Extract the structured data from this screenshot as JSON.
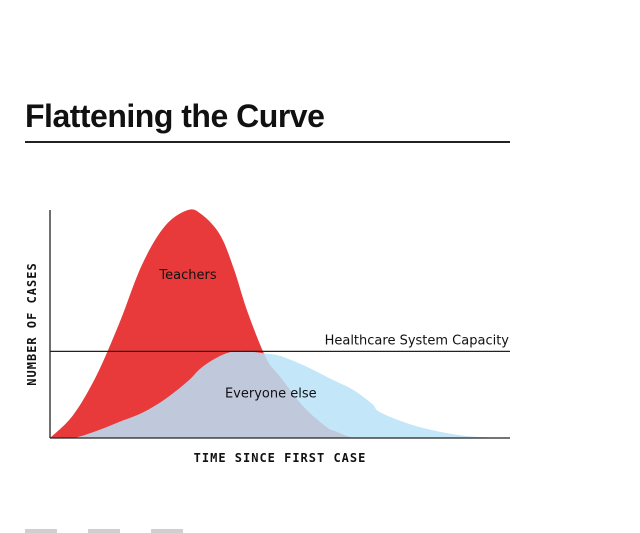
{
  "title": "Flattening the Curve",
  "chart_data": {
    "type": "area",
    "title": "Flattening the Curve",
    "xlabel": "TIME SINCE FIRST CASE",
    "ylabel": "NUMBER OF CASES",
    "xlim": [
      0,
      100
    ],
    "ylim": [
      0,
      100
    ],
    "grid": false,
    "series": [
      {
        "name": "Teachers",
        "color": "#e83a3a",
        "x": [
          0,
          5,
          10,
          15,
          20,
          25,
          30,
          33,
          37,
          40,
          43,
          47,
          50,
          55,
          60,
          62,
          66,
          70,
          72,
          80,
          90,
          100
        ],
        "y": [
          0,
          10,
          27,
          50,
          76,
          93,
          100,
          98,
          89,
          74,
          55,
          35,
          27,
          14,
          5,
          3,
          0,
          0,
          0,
          0,
          0,
          0
        ]
      },
      {
        "name": "Everyone else",
        "color": "#b9e2f8",
        "x": [
          0,
          5,
          10,
          15,
          20,
          25,
          30,
          33,
          37,
          40,
          43,
          47,
          50,
          55,
          60,
          62,
          66,
          70,
          72,
          80,
          90,
          100
        ],
        "y": [
          0,
          0,
          3,
          7,
          11,
          17,
          25,
          31,
          36,
          38,
          38,
          37,
          36,
          32,
          27,
          25,
          21,
          15,
          11,
          5,
          1,
          0
        ]
      }
    ],
    "annotations": [
      {
        "text": "Healthcare System Capacity",
        "y": 38
      }
    ]
  }
}
